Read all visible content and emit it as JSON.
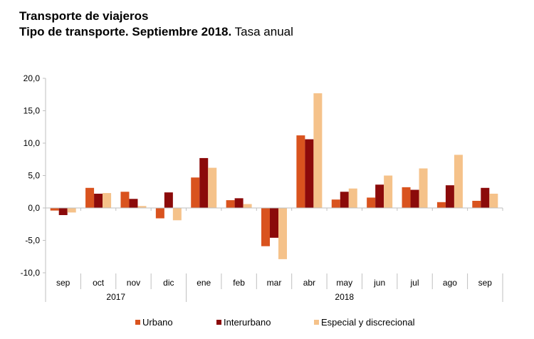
{
  "title": "Transporte de viajeros",
  "subtitle_bold": "Tipo de transporte. Septiembre 2018.",
  "subtitle_normal": "Tasa anual",
  "chart_data": {
    "type": "bar",
    "title": "Transporte de viajeros",
    "subtitle": "Tipo de transporte. Septiembre 2018. Tasa anual",
    "categories": [
      "sep",
      "oct",
      "nov",
      "dic",
      "ene",
      "feb",
      "mar",
      "abr",
      "may",
      "jun",
      "jul",
      "ago",
      "sep"
    ],
    "category_groups": [
      {
        "label": "2017",
        "categories": [
          "sep",
          "oct",
          "nov",
          "dic"
        ]
      },
      {
        "label": "2018",
        "categories": [
          "ene",
          "feb",
          "mar",
          "abr",
          "may",
          "jun",
          "jul",
          "ago",
          "sep"
        ]
      }
    ],
    "series": [
      {
        "name": "Urbano",
        "color": "#d9531e",
        "values": [
          -0.4,
          3.1,
          2.5,
          -1.6,
          4.7,
          1.2,
          -5.9,
          11.2,
          1.3,
          1.6,
          3.2,
          0.9,
          1.1
        ]
      },
      {
        "name": "Interurbano",
        "color": "#8b0a0a",
        "values": [
          -1.1,
          2.2,
          1.4,
          2.4,
          7.7,
          1.5,
          -4.6,
          10.6,
          2.5,
          3.6,
          2.8,
          3.5,
          3.1
        ]
      },
      {
        "name": "Especial y discrecional",
        "color": "#f5c28a",
        "values": [
          -0.7,
          2.3,
          0.3,
          -1.9,
          6.2,
          0.6,
          -7.9,
          17.7,
          3.0,
          5.0,
          6.1,
          8.2,
          2.2
        ]
      }
    ],
    "ylim": [
      -10,
      20
    ],
    "yticks": [
      20,
      15,
      10,
      5,
      0,
      -5,
      -10
    ],
    "ytick_labels": [
      "20,0",
      "15,0",
      "10,0",
      "5,0",
      "0,0",
      "-5,0",
      "-10,0"
    ],
    "xlabel": "",
    "ylabel": "",
    "grid": false,
    "legend_position": "bottom"
  }
}
